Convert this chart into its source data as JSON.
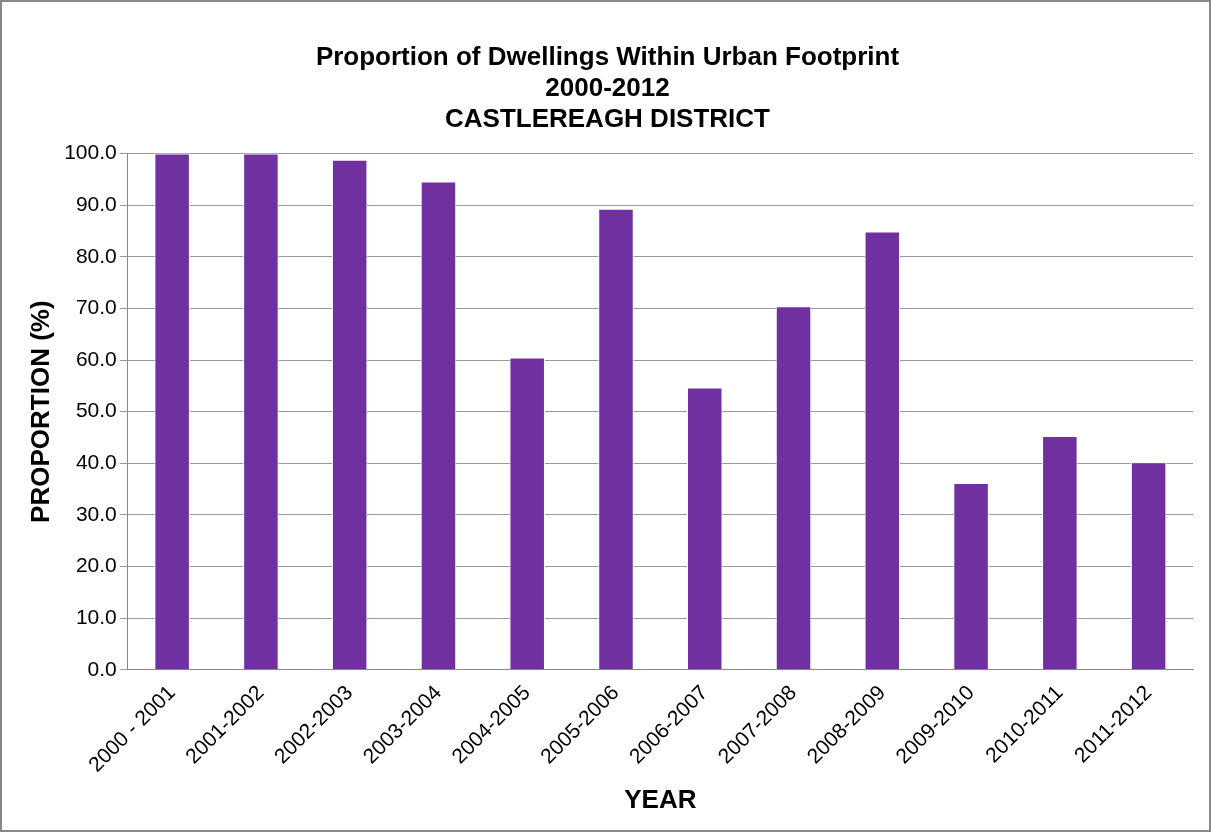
{
  "chart_data": {
    "type": "bar",
    "title": [
      "Proportion of Dwellings Within Urban Footprint",
      "2000-2012",
      "CASTLEREAGH DISTRICT"
    ],
    "xlabel": "YEAR",
    "ylabel": "PROPORTION (%)",
    "categories": [
      "2000 - 2001",
      "2001-2002",
      "2002-2003",
      "2003-2004",
      "2004-2005",
      "2005-2006",
      "2006-2007",
      "2007-2008",
      "2008-2009",
      "2009-2010",
      "2010-2011",
      "2011-2012"
    ],
    "values": [
      100,
      100,
      98.8,
      94.6,
      60.5,
      89.3,
      54.7,
      70.4,
      84.9,
      36.2,
      45.3,
      40.2
    ],
    "color": "#7030a0",
    "ylim": [
      0,
      100
    ],
    "yticks": [
      {
        "value": 0,
        "label": "0.0"
      },
      {
        "value": 10,
        "label": "10.0"
      },
      {
        "value": 20,
        "label": "20.0"
      },
      {
        "value": 30,
        "label": "30.0"
      },
      {
        "value": 40,
        "label": "40.0"
      },
      {
        "value": 50,
        "label": "50.0"
      },
      {
        "value": 60,
        "label": "60.0"
      },
      {
        "value": 70,
        "label": "70.0"
      },
      {
        "value": 80,
        "label": "80.0"
      },
      {
        "value": 90,
        "label": "90.0"
      },
      {
        "value": 100,
        "label": "100.0"
      }
    ],
    "grid": "y",
    "legend": false
  }
}
